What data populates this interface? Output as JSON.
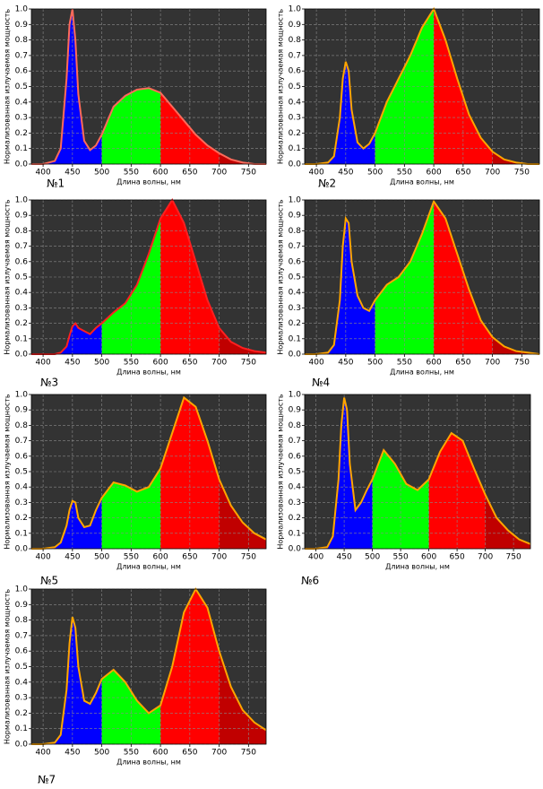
{
  "chart_data": [
    {
      "type": "line",
      "label": "№1",
      "xlabel": "Длина волны, нм",
      "ylabel": "Нормализованная излучаемая мощность",
      "x": [
        380,
        400,
        420,
        430,
        440,
        445,
        450,
        455,
        460,
        470,
        480,
        490,
        500,
        520,
        540,
        560,
        580,
        600,
        620,
        640,
        660,
        680,
        700,
        720,
        740,
        760,
        780
      ],
      "values": [
        0,
        0,
        0.02,
        0.1,
        0.55,
        0.9,
        1.0,
        0.8,
        0.45,
        0.15,
        0.09,
        0.12,
        0.19,
        0.37,
        0.44,
        0.48,
        0.49,
        0.46,
        0.37,
        0.28,
        0.19,
        0.12,
        0.07,
        0.03,
        0.01,
        0,
        0
      ],
      "color": "#ff6a5a",
      "background": "#333333",
      "fill_bands": [
        {
          "from": 380,
          "to": 500,
          "color": "#0000ff"
        },
        {
          "from": 500,
          "to": 600,
          "color": "#00ff00"
        },
        {
          "from": 600,
          "to": 700,
          "color": "#ff0000"
        },
        {
          "from": 700,
          "to": 780,
          "color": "#c00000"
        }
      ],
      "xlim": [
        380,
        780
      ],
      "ylim": [
        0,
        1
      ],
      "xticks": [
        400,
        450,
        500,
        550,
        600,
        650,
        700,
        750
      ],
      "yticks": [
        {
          "value": 0,
          "label": "0.0"
        },
        0.1,
        0.2,
        0.3,
        0.4,
        0.5,
        0.6,
        0.7,
        0.8,
        0.9,
        {
          "value": 1,
          "label": "1.0"
        }
      ],
      "grid": true
    },
    {
      "type": "line",
      "label": "№2",
      "xlabel": "Длина волны, нм",
      "ylabel": "Нормализованная излучаемая мощность",
      "x": [
        380,
        400,
        420,
        430,
        440,
        445,
        450,
        455,
        460,
        470,
        480,
        490,
        500,
        520,
        540,
        560,
        580,
        600,
        620,
        640,
        660,
        680,
        700,
        720,
        740,
        760,
        780
      ],
      "values": [
        0,
        0,
        0.01,
        0.05,
        0.3,
        0.55,
        0.66,
        0.6,
        0.35,
        0.14,
        0.1,
        0.13,
        0.2,
        0.4,
        0.55,
        0.7,
        0.88,
        1.0,
        0.8,
        0.55,
        0.32,
        0.17,
        0.08,
        0.03,
        0.01,
        0,
        0
      ],
      "color": "#ffa500",
      "background": "#333333",
      "fill_bands": [
        {
          "from": 380,
          "to": 500,
          "color": "#0000ff"
        },
        {
          "from": 500,
          "to": 600,
          "color": "#00ff00"
        },
        {
          "from": 600,
          "to": 700,
          "color": "#ff0000"
        },
        {
          "from": 700,
          "to": 780,
          "color": "#c00000"
        }
      ],
      "xlim": [
        380,
        780
      ],
      "ylim": [
        0,
        1
      ],
      "xticks": [
        400,
        450,
        500,
        550,
        600,
        650,
        700,
        750
      ],
      "yticks": [
        {
          "value": 0,
          "label": "0.0"
        },
        0.1,
        0.2,
        0.3,
        0.4,
        0.5,
        0.6,
        0.7,
        0.8,
        0.9,
        {
          "value": 1,
          "label": "1.0"
        }
      ],
      "grid": true
    },
    {
      "type": "line",
      "label": "№3",
      "xlabel": "Длина волны, нм",
      "ylabel": "Нормализованная излучаемая мощность",
      "x": [
        380,
        400,
        420,
        430,
        440,
        445,
        450,
        455,
        460,
        470,
        480,
        490,
        500,
        520,
        540,
        560,
        580,
        600,
        620,
        640,
        660,
        680,
        700,
        720,
        740,
        760,
        780
      ],
      "values": [
        0,
        0,
        0,
        0.01,
        0.05,
        0.12,
        0.18,
        0.2,
        0.17,
        0.15,
        0.13,
        0.17,
        0.2,
        0.27,
        0.33,
        0.45,
        0.65,
        0.88,
        1.0,
        0.85,
        0.6,
        0.35,
        0.17,
        0.08,
        0.04,
        0.02,
        0.01
      ],
      "color": "#ff2020",
      "background": "#333333",
      "fill_bands": [
        {
          "from": 380,
          "to": 500,
          "color": "#0000ff"
        },
        {
          "from": 500,
          "to": 600,
          "color": "#00ff00"
        },
        {
          "from": 600,
          "to": 700,
          "color": "#ff0000"
        },
        {
          "from": 700,
          "to": 780,
          "color": "#c00000"
        }
      ],
      "xlim": [
        380,
        780
      ],
      "ylim": [
        0,
        1
      ],
      "xticks": [
        400,
        450,
        500,
        550,
        600,
        650,
        700,
        750
      ],
      "yticks": [
        {
          "value": 0,
          "label": "0.0"
        },
        0.1,
        0.2,
        0.3,
        0.4,
        0.5,
        0.6,
        0.7,
        0.8,
        0.9,
        {
          "value": 1,
          "label": "1.0"
        }
      ],
      "grid": true
    },
    {
      "type": "line",
      "label": "№4",
      "xlabel": "Длина волны, нм",
      "ylabel": "Нормализованная излучаемая мощность",
      "x": [
        380,
        400,
        420,
        430,
        440,
        445,
        450,
        455,
        460,
        470,
        480,
        490,
        500,
        520,
        540,
        560,
        580,
        600,
        620,
        640,
        660,
        680,
        700,
        720,
        740,
        760,
        780
      ],
      "values": [
        0,
        0,
        0.01,
        0.06,
        0.35,
        0.7,
        0.88,
        0.85,
        0.6,
        0.38,
        0.3,
        0.28,
        0.35,
        0.45,
        0.5,
        0.6,
        0.78,
        0.99,
        0.88,
        0.65,
        0.42,
        0.22,
        0.11,
        0.05,
        0.02,
        0.01,
        0
      ],
      "color": "#ffa500",
      "background": "#333333",
      "fill_bands": [
        {
          "from": 380,
          "to": 500,
          "color": "#0000ff"
        },
        {
          "from": 500,
          "to": 600,
          "color": "#00ff00"
        },
        {
          "from": 600,
          "to": 700,
          "color": "#ff0000"
        },
        {
          "from": 700,
          "to": 780,
          "color": "#c00000"
        }
      ],
      "xlim": [
        380,
        780
      ],
      "ylim": [
        0,
        1
      ],
      "xticks": [
        400,
        450,
        500,
        550,
        600,
        650,
        700,
        750
      ],
      "yticks": [
        {
          "value": 0,
          "label": "0.0"
        },
        0.1,
        0.2,
        0.3,
        0.4,
        0.5,
        0.6,
        0.7,
        0.8,
        0.9,
        {
          "value": 1,
          "label": "1.0"
        }
      ],
      "grid": true
    },
    {
      "type": "line",
      "label": "№5",
      "xlabel": "Длина волны, нм",
      "ylabel": "Нормализованная излучаемая мощность",
      "x": [
        380,
        400,
        420,
        430,
        440,
        445,
        450,
        455,
        460,
        470,
        480,
        490,
        500,
        520,
        540,
        560,
        580,
        600,
        620,
        640,
        660,
        680,
        700,
        720,
        740,
        760,
        780
      ],
      "values": [
        0,
        0,
        0.01,
        0.04,
        0.15,
        0.25,
        0.31,
        0.3,
        0.2,
        0.14,
        0.15,
        0.25,
        0.33,
        0.43,
        0.41,
        0.37,
        0.4,
        0.52,
        0.75,
        0.98,
        0.92,
        0.7,
        0.45,
        0.28,
        0.17,
        0.1,
        0.06
      ],
      "color": "#ffa500",
      "background": "#333333",
      "fill_bands": [
        {
          "from": 380,
          "to": 500,
          "color": "#0000ff"
        },
        {
          "from": 500,
          "to": 600,
          "color": "#00ff00"
        },
        {
          "from": 600,
          "to": 700,
          "color": "#ff0000"
        },
        {
          "from": 700,
          "to": 780,
          "color": "#c00000"
        }
      ],
      "xlim": [
        380,
        780
      ],
      "ylim": [
        0,
        1
      ],
      "xticks": [
        400,
        450,
        500,
        550,
        600,
        650,
        700,
        750
      ],
      "yticks": [
        {
          "value": 0,
          "label": "0.0"
        },
        0.1,
        0.2,
        0.3,
        0.4,
        0.5,
        0.6,
        0.7,
        0.8,
        0.9,
        {
          "value": 1,
          "label": "1.0"
        }
      ],
      "grid": true
    },
    {
      "type": "line",
      "label": "№6",
      "xlabel": "Длина волны, нм",
      "ylabel": "Нормализованная излучаемая мощность",
      "x": [
        380,
        400,
        420,
        430,
        440,
        445,
        450,
        455,
        460,
        470,
        480,
        490,
        500,
        520,
        540,
        560,
        580,
        600,
        620,
        640,
        660,
        680,
        700,
        720,
        740,
        760,
        780
      ],
      "values": [
        0,
        0,
        0.01,
        0.08,
        0.45,
        0.8,
        0.98,
        0.9,
        0.55,
        0.25,
        0.3,
        0.38,
        0.45,
        0.64,
        0.55,
        0.42,
        0.38,
        0.45,
        0.63,
        0.75,
        0.7,
        0.52,
        0.35,
        0.2,
        0.12,
        0.06,
        0.03
      ],
      "color": "#ffa500",
      "background": "#333333",
      "fill_bands": [
        {
          "from": 380,
          "to": 500,
          "color": "#0000ff"
        },
        {
          "from": 500,
          "to": 600,
          "color": "#00ff00"
        },
        {
          "from": 600,
          "to": 700,
          "color": "#ff0000"
        },
        {
          "from": 700,
          "to": 780,
          "color": "#c00000"
        }
      ],
      "xlim": [
        380,
        780
      ],
      "ylim": [
        0,
        1
      ],
      "xticks": [
        400,
        450,
        500,
        550,
        600,
        650,
        700,
        750
      ],
      "yticks": [
        {
          "value": 0,
          "label": "0.0"
        },
        0.1,
        0.2,
        0.3,
        0.4,
        0.5,
        0.6,
        0.7,
        0.8,
        0.9,
        {
          "value": 1,
          "label": "1.0"
        }
      ],
      "grid": true
    },
    {
      "type": "line",
      "label": "№7",
      "xlabel": "Длина волны, нм",
      "ylabel": "Нормализованная излучаемая мощность",
      "x": [
        380,
        400,
        420,
        430,
        440,
        445,
        450,
        455,
        460,
        470,
        480,
        490,
        500,
        520,
        540,
        560,
        580,
        600,
        620,
        640,
        660,
        680,
        700,
        720,
        740,
        760,
        780
      ],
      "values": [
        0,
        0,
        0.01,
        0.06,
        0.35,
        0.65,
        0.82,
        0.75,
        0.5,
        0.28,
        0.26,
        0.33,
        0.42,
        0.48,
        0.4,
        0.28,
        0.2,
        0.25,
        0.5,
        0.85,
        1.0,
        0.88,
        0.6,
        0.37,
        0.22,
        0.14,
        0.09
      ],
      "color": "#ffa500",
      "background": "#333333",
      "fill_bands": [
        {
          "from": 380,
          "to": 500,
          "color": "#0000ff"
        },
        {
          "from": 500,
          "to": 600,
          "color": "#00ff00"
        },
        {
          "from": 600,
          "to": 700,
          "color": "#ff0000"
        },
        {
          "from": 700,
          "to": 780,
          "color": "#c00000"
        }
      ],
      "xlim": [
        380,
        780
      ],
      "ylim": [
        0,
        1
      ],
      "xticks": [
        400,
        450,
        500,
        550,
        600,
        650,
        700,
        750
      ],
      "yticks": [
        {
          "value": 0,
          "label": "0.0"
        },
        0.1,
        0.2,
        0.3,
        0.4,
        0.5,
        0.6,
        0.7,
        0.8,
        0.9,
        {
          "value": 1,
          "label": "1.0"
        }
      ],
      "grid": true
    }
  ]
}
